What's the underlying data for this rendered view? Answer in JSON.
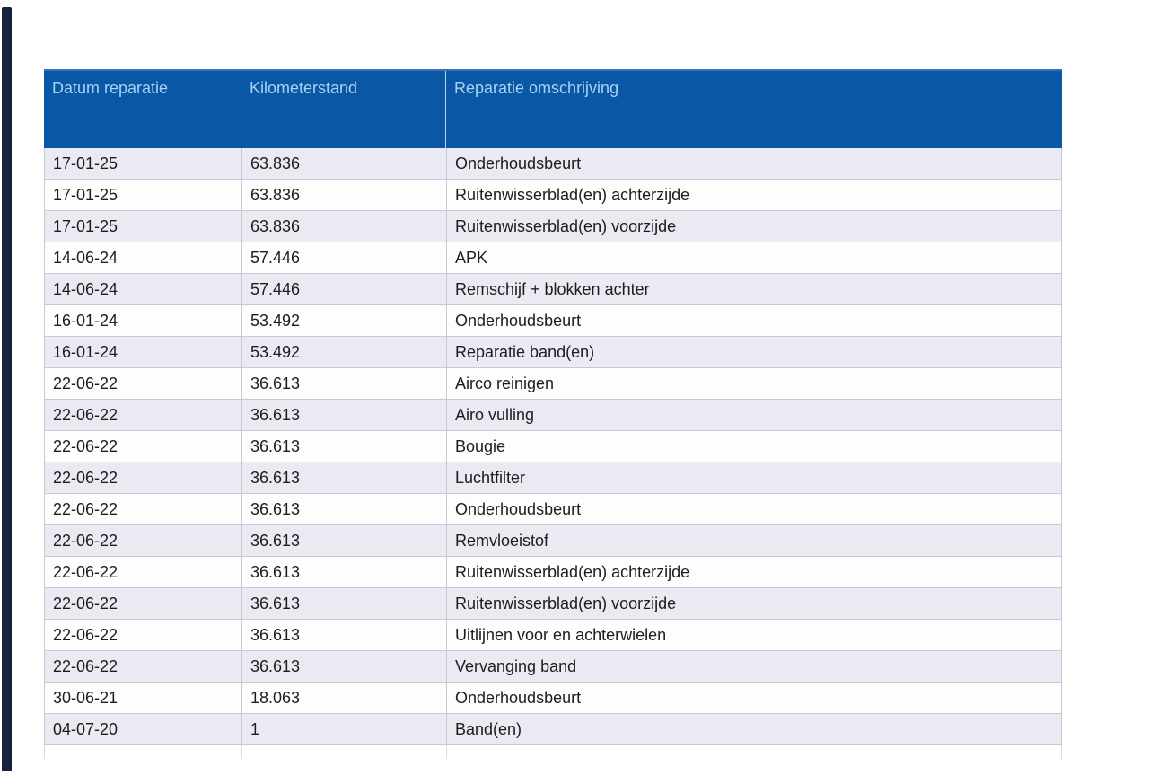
{
  "page": {
    "background_color": "#ffffff",
    "left_bar_color": "#17233b"
  },
  "table": {
    "header": {
      "bg_color": "#0a57a5",
      "text_color": "#a4d3f3",
      "columns": [
        "Datum reparatie",
        "Kilometerstand",
        "Reparatie omschrijving"
      ]
    },
    "alt_row_bg_color": "#eaeaf2",
    "rows": [
      {
        "datum": "17-01-25",
        "km": "63.836",
        "omschrijving": "Onderhoudsbeurt"
      },
      {
        "datum": "17-01-25",
        "km": "63.836",
        "omschrijving": "Ruitenwisserblad(en) achterzijde"
      },
      {
        "datum": "17-01-25",
        "km": "63.836",
        "omschrijving": "Ruitenwisserblad(en) voorzijde"
      },
      {
        "datum": "14-06-24",
        "km": "57.446",
        "omschrijving": "APK"
      },
      {
        "datum": "14-06-24",
        "km": "57.446",
        "omschrijving": "Remschijf + blokken achter"
      },
      {
        "datum": "16-01-24",
        "km": "53.492",
        "omschrijving": "Onderhoudsbeurt"
      },
      {
        "datum": "16-01-24",
        "km": "53.492",
        "omschrijving": "Reparatie band(en)"
      },
      {
        "datum": "22-06-22",
        "km": "36.613",
        "omschrijving": "Airco reinigen"
      },
      {
        "datum": "22-06-22",
        "km": "36.613",
        "omschrijving": "Airo vulling"
      },
      {
        "datum": "22-06-22",
        "km": "36.613",
        "omschrijving": "Bougie"
      },
      {
        "datum": "22-06-22",
        "km": "36.613",
        "omschrijving": "Luchtfilter"
      },
      {
        "datum": "22-06-22",
        "km": "36.613",
        "omschrijving": "Onderhoudsbeurt"
      },
      {
        "datum": "22-06-22",
        "km": "36.613",
        "omschrijving": "Remvloeistof"
      },
      {
        "datum": "22-06-22",
        "km": "36.613",
        "omschrijving": "Ruitenwisserblad(en) achterzijde"
      },
      {
        "datum": "22-06-22",
        "km": "36.613",
        "omschrijving": "Ruitenwisserblad(en) voorzijde"
      },
      {
        "datum": "22-06-22",
        "km": "36.613",
        "omschrijving": "Uitlijnen voor en achterwielen"
      },
      {
        "datum": "22-06-22",
        "km": "36.613",
        "omschrijving": "Vervanging band"
      },
      {
        "datum": "30-06-21",
        "km": "18.063",
        "omschrijving": "Onderhoudsbeurt"
      },
      {
        "datum": "04-07-20",
        "km": "1",
        "omschrijving": "Band(en)"
      }
    ]
  }
}
